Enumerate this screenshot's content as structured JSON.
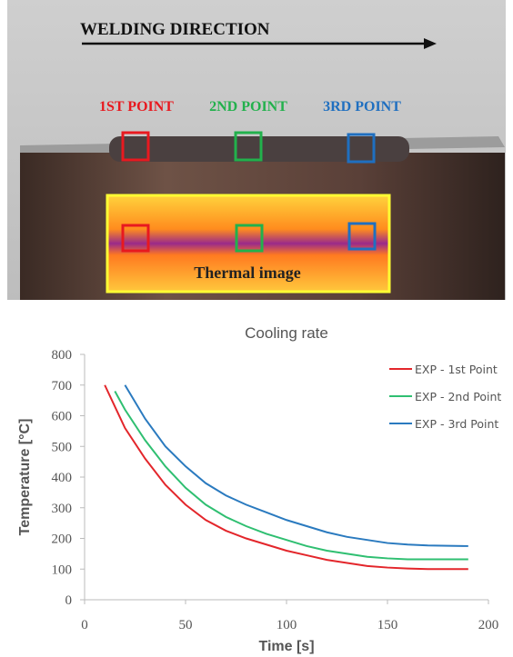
{
  "photo": {
    "direction_label": "WELDING DIRECTION",
    "points": [
      "1ST POINT",
      "2ND POINT",
      "3RD POINT"
    ],
    "thermal_label": "Thermal image"
  },
  "chart_data": {
    "type": "line",
    "title": "Cooling rate",
    "x_label": "Time [s]",
    "y_label": "Temperature [°C]",
    "xlim": [
      0,
      200
    ],
    "xticks": [
      0,
      50,
      100,
      150,
      200
    ],
    "ylim": [
      0,
      800
    ],
    "yticks": [
      0,
      100,
      200,
      300,
      400,
      500,
      600,
      700,
      800
    ],
    "grid": false,
    "legend": "upper right",
    "series": [
      {
        "name": "EXP - 1st Point",
        "color": "#e3262b",
        "x": [
          10,
          20,
          30,
          40,
          50,
          60,
          70,
          80,
          90,
          100,
          110,
          120,
          130,
          140,
          150,
          160,
          170,
          180,
          190
        ],
        "values": [
          700,
          560,
          460,
          375,
          310,
          260,
          225,
          200,
          180,
          160,
          145,
          130,
          120,
          110,
          105,
          102,
          100,
          100,
          100
        ]
      },
      {
        "name": "EXP - 2nd Point",
        "color": "#2fbf71",
        "x": [
          15,
          20,
          30,
          40,
          50,
          60,
          70,
          80,
          90,
          100,
          110,
          120,
          130,
          140,
          150,
          160,
          170,
          180,
          190
        ],
        "values": [
          680,
          620,
          520,
          435,
          365,
          310,
          270,
          240,
          215,
          195,
          175,
          160,
          150,
          140,
          135,
          132,
          132,
          132,
          132
        ]
      },
      {
        "name": "EXP - 3rd Point",
        "color": "#2a7abf",
        "x": [
          20,
          30,
          40,
          50,
          60,
          70,
          80,
          90,
          100,
          110,
          120,
          130,
          140,
          150,
          160,
          170,
          180,
          190
        ],
        "values": [
          700,
          590,
          500,
          435,
          380,
          340,
          310,
          285,
          260,
          240,
          220,
          205,
          195,
          185,
          180,
          177,
          176,
          175
        ]
      }
    ]
  }
}
